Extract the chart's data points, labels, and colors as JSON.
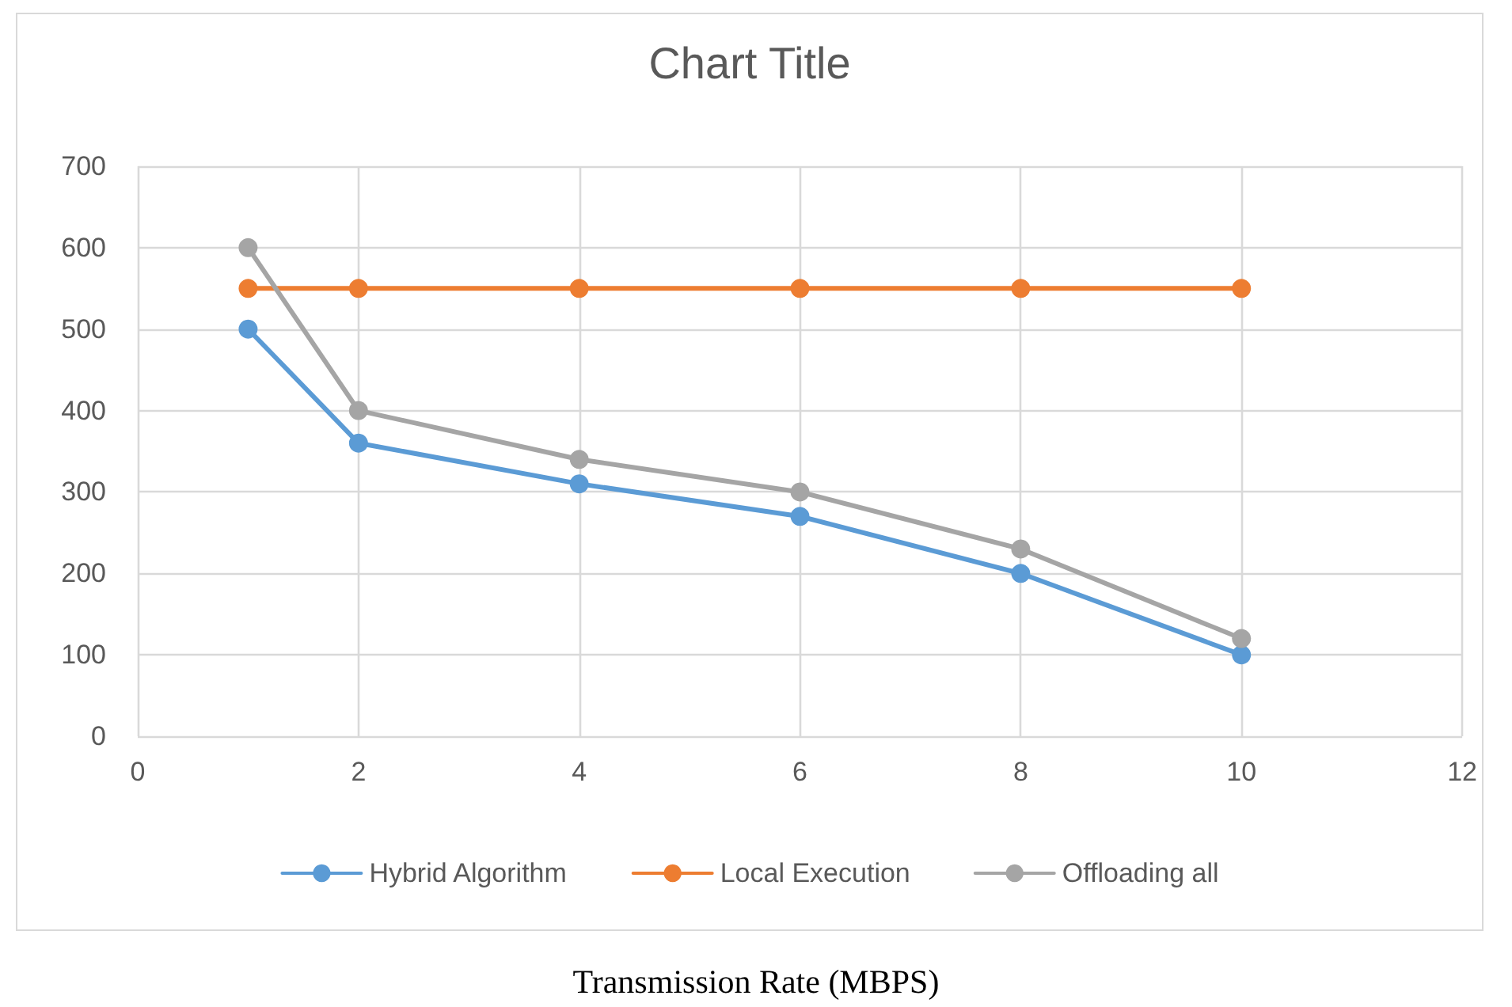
{
  "chart_data": {
    "type": "line",
    "title": "Chart Title",
    "annotations": [
      "Transmission Rate (MBPS)"
    ],
    "x": [
      1,
      2,
      4,
      6,
      8,
      10
    ],
    "series": [
      {
        "name": "Hybrid Algorithm",
        "color": "#5b9bd5",
        "values": [
          500,
          360,
          310,
          270,
          200,
          100
        ]
      },
      {
        "name": "Local Execution",
        "color": "#ed7d31",
        "values": [
          550,
          550,
          550,
          550,
          550,
          550
        ]
      },
      {
        "name": "Offloading all",
        "color": "#a5a5a5",
        "values": [
          600,
          400,
          340,
          300,
          230,
          120
        ]
      }
    ],
    "xlim": [
      0,
      12
    ],
    "xticks": [
      0,
      2,
      4,
      6,
      8,
      10,
      12
    ],
    "ylim": [
      0,
      700
    ],
    "yticks": [
      0,
      100,
      200,
      300,
      400,
      500,
      600,
      700
    ],
    "grid": true,
    "legend": "bottom",
    "marker": "circle",
    "line_style": "solid"
  }
}
